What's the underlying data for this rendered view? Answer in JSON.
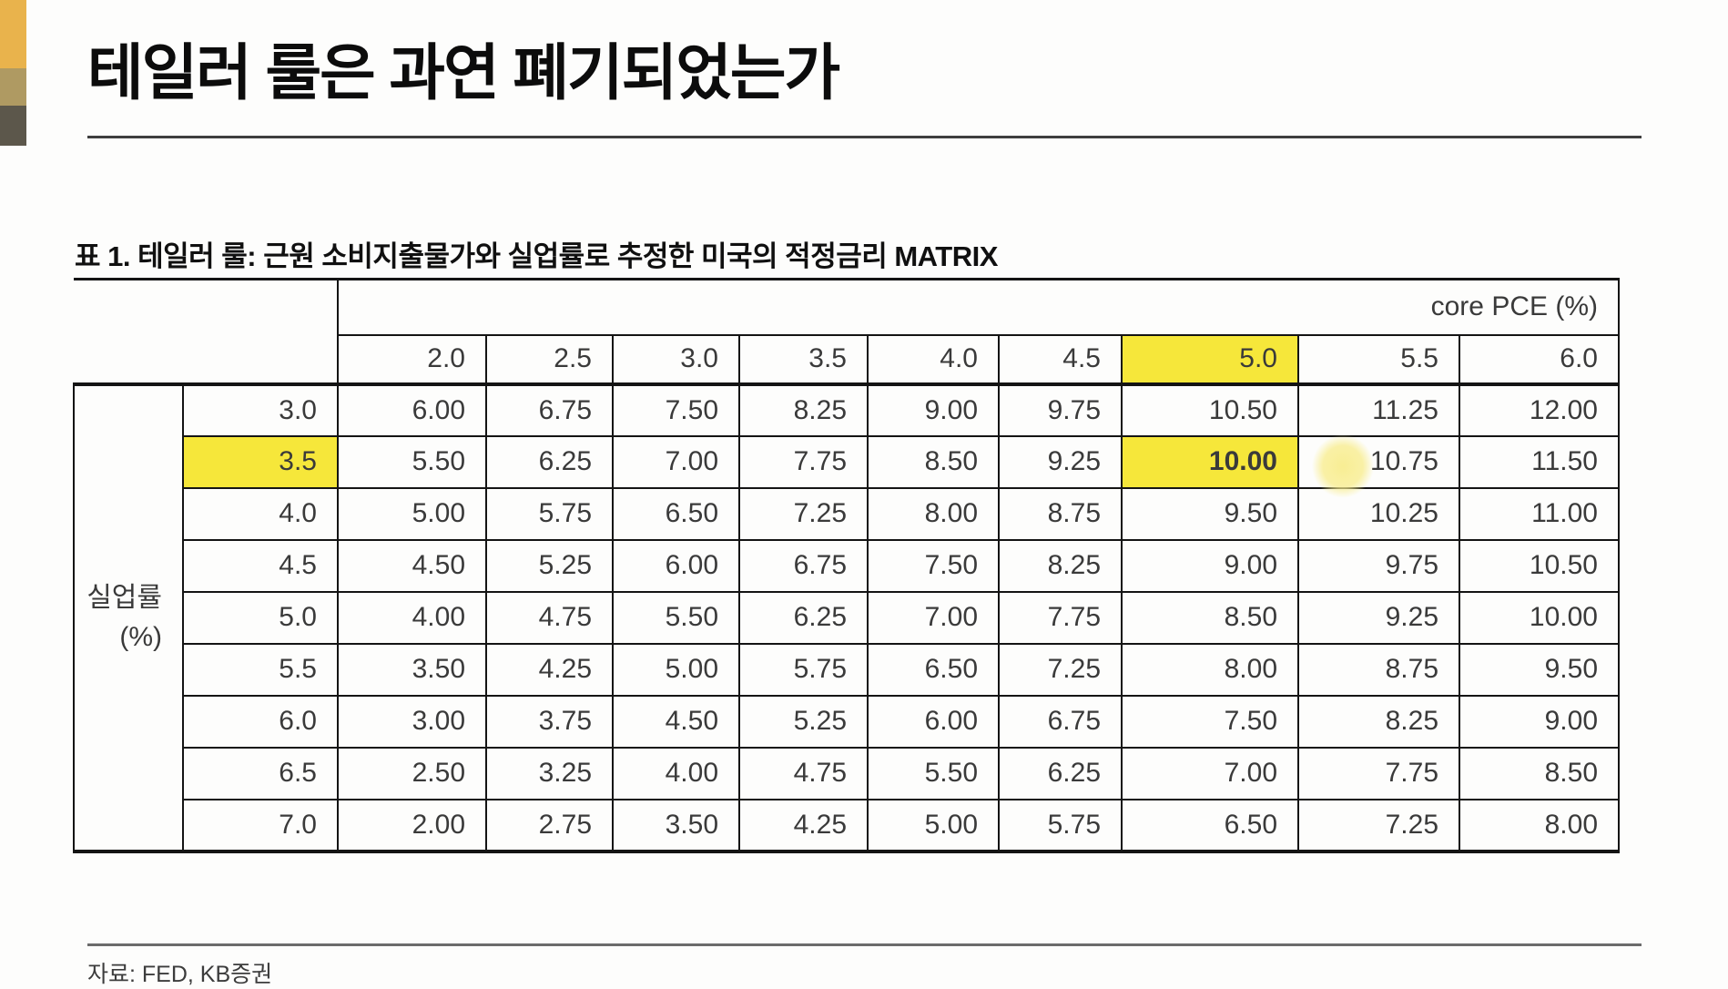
{
  "header": {
    "title": "테일러 룰은 과연 폐기되었는가"
  },
  "table": {
    "caption": "표 1. 테일러 룰: 근원 소비지출물가와 실업률로 추정한 미국의 적정금리 MATRIX",
    "col_group_label": "core PCE (%)",
    "row_group_label": [
      "실업률",
      "(%)"
    ],
    "columns": [
      "2.0",
      "2.5",
      "3.0",
      "3.5",
      "4.0",
      "4.5",
      "5.0",
      "5.5",
      "6.0"
    ],
    "rows": [
      {
        "label": "3.0",
        "values": [
          "6.00",
          "6.75",
          "7.50",
          "8.25",
          "9.00",
          "9.75",
          "10.50",
          "11.25",
          "12.00"
        ]
      },
      {
        "label": "3.5",
        "values": [
          "5.50",
          "6.25",
          "7.00",
          "7.75",
          "8.50",
          "9.25",
          "10.00",
          "10.75",
          "11.50"
        ]
      },
      {
        "label": "4.0",
        "values": [
          "5.00",
          "5.75",
          "6.50",
          "7.25",
          "8.00",
          "8.75",
          "9.50",
          "10.25",
          "11.00"
        ]
      },
      {
        "label": "4.5",
        "values": [
          "4.50",
          "5.25",
          "6.00",
          "6.75",
          "7.50",
          "8.25",
          "9.00",
          "9.75",
          "10.50"
        ]
      },
      {
        "label": "5.0",
        "values": [
          "4.00",
          "4.75",
          "5.50",
          "6.25",
          "7.00",
          "7.75",
          "8.50",
          "9.25",
          "10.00"
        ]
      },
      {
        "label": "5.5",
        "values": [
          "3.50",
          "4.25",
          "5.00",
          "5.75",
          "6.50",
          "7.25",
          "8.00",
          "8.75",
          "9.50"
        ]
      },
      {
        "label": "6.0",
        "values": [
          "3.00",
          "3.75",
          "4.50",
          "5.25",
          "6.00",
          "6.75",
          "7.50",
          "8.25",
          "9.00"
        ]
      },
      {
        "label": "6.5",
        "values": [
          "2.50",
          "3.25",
          "4.00",
          "4.75",
          "5.50",
          "6.25",
          "7.00",
          "7.75",
          "8.50"
        ]
      },
      {
        "label": "7.0",
        "values": [
          "2.00",
          "2.75",
          "3.50",
          "4.25",
          "5.00",
          "5.75",
          "6.50",
          "7.25",
          "8.00"
        ]
      }
    ],
    "highlight": {
      "column": "5.0",
      "row": "3.5",
      "cell_value": "10.00",
      "color": "#F6E73A"
    }
  },
  "footer": {
    "source": "자료: FED, KB증권"
  },
  "accents": {
    "bar_colors": [
      "#E9B34C",
      "#AF9A62",
      "#5C574B"
    ],
    "glow_color": "#F8ED8E"
  }
}
